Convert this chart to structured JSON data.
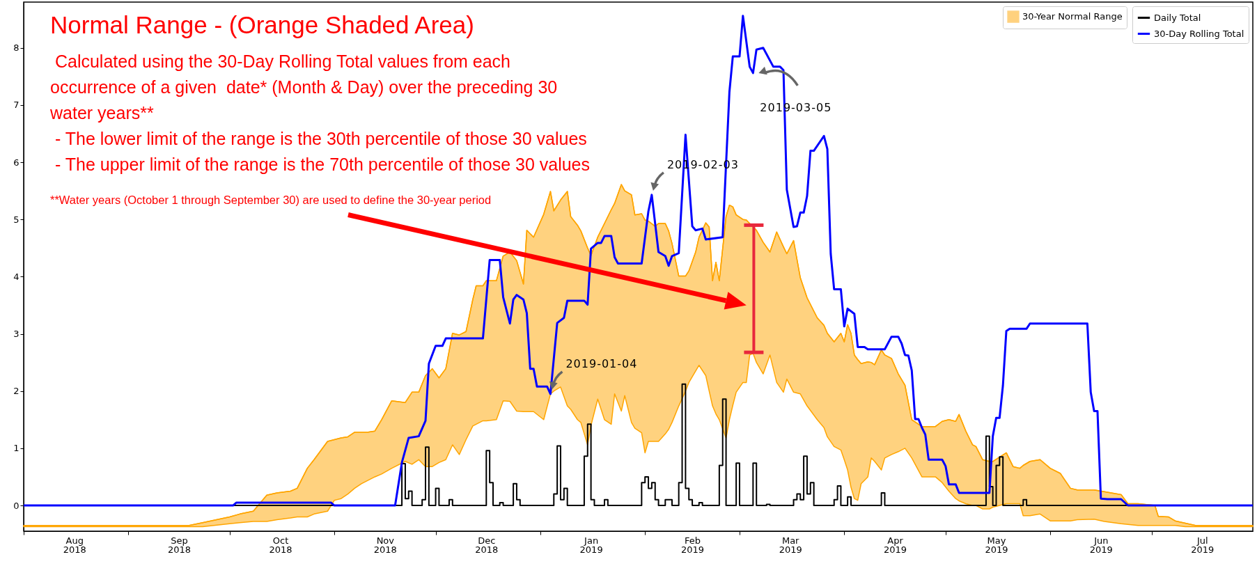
{
  "chart_data": {
    "type": "line",
    "title": "Normal Range - (Orange Shaded Area)",
    "annotations": [
      " Calculated using the 30-Day Rolling Total values from each\noccurrence of a given  date* (Month & Day) over the preceding 30\nwater years**",
      " - The lower limit of the range is the 30th percentile of those 30 values",
      " - The upper limit of the range is the 70th percentile of those 30 values",
      "**Water years (October 1 through September 30) are used to define the 30-year period",
      {
        "text": "2019-01-04",
        "x": "2019-01-04",
        "y": 1.95
      },
      {
        "text": "2019-02-03",
        "x": "2019-02-03",
        "y": 5.43
      },
      {
        "text": "2019-03-05",
        "x": "2019-03-05",
        "y": 7.56
      }
    ],
    "xlim": [
      "2018-08-01",
      "2019-07-31"
    ],
    "ylim": [
      -0.45,
      8.8
    ],
    "yticks": [
      0,
      1,
      2,
      3,
      4,
      5,
      6,
      7,
      8
    ],
    "xticks": [
      {
        "value": "2018-08-01",
        "label": null
      },
      {
        "value": "2018-09-01",
        "label": null
      },
      {
        "value": "2018-10-01",
        "label": null
      },
      {
        "value": "2018-11-01",
        "label": null
      },
      {
        "value": "2018-12-01",
        "label": null
      },
      {
        "value": "2019-01-01",
        "label": null
      },
      {
        "value": "2019-02-01",
        "label": null
      },
      {
        "value": "2019-03-01",
        "label": null
      },
      {
        "value": "2019-04-01",
        "label": null
      },
      {
        "value": "2019-05-01",
        "label": null
      },
      {
        "value": "2019-06-01",
        "label": null
      },
      {
        "value": "2019-07-01",
        "label": null
      },
      {
        "value": "2018-08-16",
        "label": "Aug 2018"
      },
      {
        "value": "2018-09-16",
        "label": "Sep 2018"
      },
      {
        "value": "2018-10-16",
        "label": "Oct 2018"
      },
      {
        "value": "2018-11-16",
        "label": "Nov 2018"
      },
      {
        "value": "2018-12-16",
        "label": "Dec 2018"
      },
      {
        "value": "2019-01-16",
        "label": "Jan 2019"
      },
      {
        "value": "2019-02-15",
        "label": "Feb 2019"
      },
      {
        "value": "2019-03-16",
        "label": "Mar 2019"
      },
      {
        "value": "2019-04-16",
        "label": "Apr 2019"
      },
      {
        "value": "2019-05-16",
        "label": "May 2019"
      },
      {
        "value": "2019-06-16",
        "label": "Jun 2019"
      },
      {
        "value": "2019-07-16",
        "label": "Jul 2019"
      }
    ],
    "legend": "top right",
    "series": [
      {
        "name": "30-Year Normal Range",
        "type": "line",
        "color": "#ffa500",
        "x": [
          "2018-08-01",
          "2018-09-19",
          "2018-09-23",
          "2018-10-01",
          "2018-10-04",
          "2018-10-08",
          "2018-10-12",
          "2018-10-15",
          "2018-10-19",
          "2018-10-21",
          "2018-10-24",
          "2018-10-26",
          "2018-10-30",
          "2018-11-01",
          "2018-11-03",
          "2018-11-05",
          "2018-11-07",
          "2018-11-09",
          "2018-11-11",
          "2018-11-13",
          "2018-11-15",
          "2018-11-18",
          "2018-11-22",
          "2018-11-24",
          "2018-11-26",
          "2018-11-28",
          "2018-11-30",
          "2018-12-02",
          "2018-12-04",
          "2018-12-06",
          "2018-12-08",
          "2018-12-10",
          "2018-12-12",
          "2018-12-13",
          "2018-12-15",
          "2018-12-16",
          "2018-12-19",
          "2018-12-21",
          "2018-12-23",
          "2018-12-25",
          "2018-12-27",
          "2018-12-28",
          "2018-12-30",
          "2019-01-02",
          "2019-01-04",
          "2019-01-05",
          "2019-01-07",
          "2019-01-09",
          "2019-01-10",
          "2019-01-12",
          "2019-01-13",
          "2019-01-15",
          "2019-01-16",
          "2019-01-18",
          "2019-01-20",
          "2019-01-22",
          "2019-01-23",
          "2019-01-25",
          "2019-01-26",
          "2019-01-28",
          "2019-01-29",
          "2019-01-31",
          "2019-02-01",
          "2019-02-02",
          "2019-02-04",
          "2019-02-05",
          "2019-02-07",
          "2019-02-08",
          "2019-02-09",
          "2019-02-11",
          "2019-02-13",
          "2019-02-14",
          "2019-02-16",
          "2019-02-17",
          "2019-02-19",
          "2019-02-20",
          "2019-02-21",
          "2019-02-22",
          "2019-02-23",
          "2019-02-25",
          "2019-02-26",
          "2019-02-27",
          "2019-02-28",
          "2019-03-02",
          "2019-03-03",
          "2019-03-04",
          "2019-03-05",
          "2019-03-06",
          "2019-03-08",
          "2019-03-10",
          "2019-03-12",
          "2019-03-14",
          "2019-03-15",
          "2019-03-17",
          "2019-03-19",
          "2019-03-21",
          "2019-03-24",
          "2019-03-26",
          "2019-03-27",
          "2019-03-29",
          "2019-03-31",
          "2019-04-01",
          "2019-04-02",
          "2019-04-03",
          "2019-04-04",
          "2019-04-05",
          "2019-04-06",
          "2019-04-08",
          "2019-04-09",
          "2019-04-10",
          "2019-04-12",
          "2019-04-13",
          "2019-04-15",
          "2019-04-17",
          "2019-04-19",
          "2019-04-21",
          "2019-04-24",
          "2019-04-28",
          "2019-04-30",
          "2019-05-02",
          "2019-05-04",
          "2019-05-05",
          "2019-05-07",
          "2019-05-09",
          "2019-05-10",
          "2019-05-12",
          "2019-05-14",
          "2019-05-15",
          "2019-05-19",
          "2019-05-21",
          "2019-05-23",
          "2019-05-24",
          "2019-05-26",
          "2019-05-29",
          "2019-06-01",
          "2019-06-04",
          "2019-06-07",
          "2019-06-09",
          "2019-06-14",
          "2019-06-17",
          "2019-06-22",
          "2019-06-24",
          "2019-06-27",
          "2019-07-02",
          "2019-07-03",
          "2019-07-06",
          "2019-07-08",
          "2019-07-11",
          "2019-07-14",
          "2019-07-31"
        ],
        "values": [
          -0.35,
          -0.35,
          -0.3,
          -0.2,
          -0.15,
          -0.1,
          0.18,
          0.22,
          0.25,
          0.3,
          0.65,
          0.8,
          1.12,
          1.15,
          1.18,
          1.2,
          1.28,
          1.28,
          1.28,
          1.3,
          1.5,
          1.83,
          1.8,
          1.98,
          1.98,
          2.27,
          2.39,
          2.23,
          2.39,
          3.01,
          2.98,
          3.04,
          3.6,
          3.84,
          3.84,
          3.93,
          3.93,
          4.36,
          4.43,
          4.28,
          3.87,
          4.81,
          4.69,
          5.09,
          5.49,
          5.15,
          5.34,
          5.49,
          5.05,
          4.9,
          4.8,
          4.5,
          4.37,
          4.69,
          4.93,
          5.17,
          5.28,
          5.61,
          5.5,
          5.43,
          5.08,
          5.1,
          4.99,
          4.97,
          4.88,
          4.93,
          4.93,
          4.8,
          4.58,
          4.01,
          4.01,
          4.1,
          4.43,
          4.69,
          4.94,
          4.87,
          3.93,
          4.25,
          3.93,
          5.05,
          5.25,
          5.22,
          5.08,
          5.0,
          4.99,
          4.93,
          4.87,
          4.81,
          4.6,
          4.43,
          4.78,
          4.52,
          4.4,
          4.63,
          3.98,
          3.63,
          3.28,
          3.15,
          3.01,
          2.86,
          3.01,
          2.86,
          3.16,
          3.01,
          2.63,
          2.55,
          2.48,
          2.51,
          2.5,
          2.46,
          2.72,
          2.63,
          2.57,
          2.3,
          2.1,
          1.5,
          1.38,
          1.38,
          1.47,
          1.5,
          1.47,
          1.59,
          1.3,
          1.06,
          1.03,
          0.8,
          0.77,
          0.77,
          0.92,
          0.68,
          0.65,
          0.7,
          0.77,
          0.8,
          0.65,
          0.56,
          0.3,
          0.27,
          0.27,
          0.24,
          0.19,
          0.03,
          0.03,
          0,
          -0.19,
          -0.2,
          -0.27,
          -0.31,
          -0.35,
          -0.35
        ],
        "upper": [
          -0.35,
          -0.35,
          -0.3,
          -0.2,
          -0.15,
          -0.1,
          0.18,
          0.22,
          0.25,
          0.3,
          0.65,
          0.8,
          1.12,
          1.15,
          1.18,
          1.2,
          1.28,
          1.28,
          1.28,
          1.3,
          1.5,
          1.83,
          1.8,
          1.98,
          1.98,
          2.27,
          2.39,
          2.23,
          2.39,
          3.01,
          2.98,
          3.04,
          3.6,
          3.84,
          3.84,
          3.93,
          3.93,
          4.36,
          4.43,
          4.28,
          3.87,
          4.81,
          4.69,
          5.09,
          5.49,
          5.15,
          5.34,
          5.49,
          5.05,
          4.9,
          4.8,
          4.5,
          4.37,
          4.69,
          4.93,
          5.17,
          5.28,
          5.61,
          5.5,
          5.43,
          5.08,
          5.1,
          4.99,
          4.97,
          4.88,
          4.93,
          4.93,
          4.8,
          4.58,
          4.01,
          4.01,
          4.1,
          4.43,
          4.69,
          4.94,
          4.87,
          3.93,
          4.25,
          3.93,
          5.05,
          5.25,
          5.22,
          5.08,
          5.0,
          4.99,
          4.93,
          4.87,
          4.81,
          4.6,
          4.43,
          4.78,
          4.52,
          4.4,
          4.63,
          3.98,
          3.63,
          3.28,
          3.15,
          3.01,
          2.86,
          3.01,
          2.86,
          3.16,
          3.01,
          2.63,
          2.55,
          2.48,
          2.51,
          2.5,
          2.46,
          2.72,
          2.63,
          2.57,
          2.3,
          2.1,
          1.5,
          1.38,
          1.38,
          1.47,
          1.5,
          1.47,
          1.59,
          1.3,
          1.06,
          1.03,
          0.8,
          0.77,
          0.77,
          0.92,
          0.68,
          0.65,
          0.7,
          0.77,
          0.8,
          0.65,
          0.56,
          0.3,
          0.27,
          0.27,
          0.24,
          0.19,
          0.03,
          0.03,
          0,
          -0.19,
          -0.2,
          -0.27,
          -0.31,
          -0.35,
          -0.35
        ],
        "lower": [
          -0.37,
          -0.37,
          -0.37,
          -0.32,
          -0.3,
          -0.28,
          -0.28,
          -0.25,
          -0.22,
          -0.2,
          -0.2,
          -0.15,
          -0.1,
          0.09,
          0.12,
          0.2,
          0.3,
          0.38,
          0.44,
          0.5,
          0.55,
          0.65,
          0.77,
          0.72,
          0.8,
          0.68,
          0.68,
          0.75,
          0.8,
          1.06,
          0.89,
          1.15,
          1.39,
          1.42,
          1.48,
          1.48,
          1.5,
          1.83,
          1.82,
          1.65,
          1.64,
          1.64,
          1.64,
          1.5,
          1.95,
          2.0,
          2.07,
          1.74,
          1.68,
          1.5,
          1.45,
          1.06,
          1.4,
          1.86,
          1.5,
          1.42,
          1.95,
          1.65,
          1.92,
          1.45,
          1.35,
          1.27,
          0.92,
          1.12,
          1.12,
          1.12,
          1.25,
          1.33,
          1.45,
          1.74,
          2.0,
          2.15,
          2.35,
          2.45,
          2.27,
          2.0,
          1.74,
          1.6,
          1.5,
          1.18,
          1.5,
          1.75,
          1.98,
          2.15,
          2.15,
          2.63,
          2.66,
          2.5,
          2.3,
          2.63,
          2.15,
          1.98,
          2.21,
          1.98,
          1.95,
          1.74,
          1.5,
          1.36,
          1.2,
          1.03,
          0.97,
          0.8,
          0.62,
          0.32,
          0.12,
          0.09,
          0.38,
          0.5,
          0.83,
          0.77,
          0.62,
          0.83,
          0.89,
          0.94,
          1.0,
          0.83,
          0.5,
          0.5,
          0.4,
          0.25,
          0.12,
          0.08,
          0.03,
          0,
          0,
          -0.06,
          -0.06,
          -0.03,
          0.03,
          0.03,
          0.03,
          -0.18,
          -0.18,
          -0.15,
          -0.27,
          -0.27,
          -0.27,
          -0.25,
          -0.24,
          -0.28,
          -0.32,
          -0.33,
          -0.35,
          -0.35,
          -0.35,
          -0.35,
          -0.35,
          -0.37,
          -0.37,
          -0.37
        ]
      },
      {
        "name": "Daily Total",
        "type": "step",
        "color": "#000000",
        "x": [
          "2018-08-01",
          "2018-11-21",
          "2018-11-22",
          "2018-11-23",
          "2018-11-24",
          "2018-11-27",
          "2018-11-28",
          "2018-11-29",
          "2018-12-01",
          "2018-12-02",
          "2018-12-05",
          "2018-12-06",
          "2018-12-16",
          "2018-12-17",
          "2018-12-18",
          "2018-12-20",
          "2018-12-21",
          "2018-12-24",
          "2018-12-25",
          "2018-12-26",
          "2019-01-05",
          "2019-01-06",
          "2019-01-07",
          "2019-01-08",
          "2019-01-09",
          "2019-01-14",
          "2019-01-15",
          "2019-01-16",
          "2019-01-17",
          "2019-01-20",
          "2019-01-21",
          "2019-01-31",
          "2019-02-01",
          "2019-02-02",
          "2019-02-03",
          "2019-02-04",
          "2019-02-05",
          "2019-02-07",
          "2019-02-09",
          "2019-02-11",
          "2019-02-12",
          "2019-02-13",
          "2019-02-14",
          "2019-02-15",
          "2019-02-17",
          "2019-02-18",
          "2019-02-23",
          "2019-02-24",
          "2019-02-25",
          "2019-02-28",
          "2019-03-01",
          "2019-03-05",
          "2019-03-06",
          "2019-03-09",
          "2019-03-10",
          "2019-03-17",
          "2019-03-18",
          "2019-03-19",
          "2019-03-20",
          "2019-03-21",
          "2019-03-22",
          "2019-03-23",
          "2019-03-29",
          "2019-03-30",
          "2019-03-31",
          "2019-04-02",
          "2019-04-03",
          "2019-04-12",
          "2019-04-13",
          "2019-05-13",
          "2019-05-14",
          "2019-05-15",
          "2019-05-16",
          "2019-05-17",
          "2019-05-18",
          "2019-05-24",
          "2019-05-25",
          "2019-07-31"
        ],
        "values": [
          0,
          0.73,
          0.12,
          0.25,
          0,
          0.1,
          1.02,
          0,
          0.3,
          0,
          0.1,
          0,
          0.96,
          0.4,
          0,
          0.05,
          0,
          0.38,
          0.1,
          0,
          0.2,
          1.04,
          0.1,
          0.3,
          0,
          0.86,
          1.42,
          0.1,
          0,
          0.1,
          0,
          0.4,
          0.5,
          0.3,
          0.4,
          0.1,
          0,
          0.1,
          0,
          0.4,
          2.12,
          0.3,
          0.1,
          0,
          0.05,
          0,
          0.7,
          1.86,
          0,
          0.74,
          0,
          0.74,
          0,
          0.02,
          0,
          0.1,
          0.2,
          0.1,
          0.86,
          0.2,
          0.4,
          0,
          0.1,
          0.34,
          0,
          0.15,
          0,
          0.22,
          0,
          1.21,
          0.33,
          0,
          0.7,
          0.85,
          0,
          0.1,
          0,
          0
        ]
      },
      {
        "name": "30-Day Rolling Total",
        "type": "line",
        "color": "#0000ff",
        "x": [
          "2018-08-01",
          "2018-10-02",
          "2018-10-03",
          "2018-10-31",
          "2018-11-01",
          "2018-11-19",
          "2018-11-21",
          "2018-11-23",
          "2018-11-26",
          "2018-11-28",
          "2018-11-29",
          "2018-12-01",
          "2018-12-03",
          "2018-12-04",
          "2018-12-15",
          "2018-12-17",
          "2018-12-20",
          "2018-12-21",
          "2018-12-23",
          "2018-12-24",
          "2018-12-25",
          "2018-12-27",
          "2018-12-28",
          "2018-12-29",
          "2018-12-30",
          "2018-12-31",
          "2019-01-03",
          "2019-01-04",
          "2019-01-06",
          "2019-01-08",
          "2019-01-09",
          "2019-01-14",
          "2019-01-15",
          "2019-01-16",
          "2019-01-18",
          "2019-01-19",
          "2019-01-20",
          "2019-01-22",
          "2019-01-23",
          "2019-01-24",
          "2019-01-31",
          "2019-02-02",
          "2019-02-03",
          "2019-02-05",
          "2019-02-07",
          "2019-02-08",
          "2019-02-09",
          "2019-02-11",
          "2019-02-13",
          "2019-02-15",
          "2019-02-16",
          "2019-02-18",
          "2019-02-19",
          "2019-02-24",
          "2019-02-26",
          "2019-02-27",
          "2019-03-01",
          "2019-03-02",
          "2019-03-04",
          "2019-03-05",
          "2019-03-06",
          "2019-03-08",
          "2019-03-11",
          "2019-03-13",
          "2019-03-14",
          "2019-03-15",
          "2019-03-17",
          "2019-03-18",
          "2019-03-19",
          "2019-03-20",
          "2019-03-21",
          "2019-03-22",
          "2019-03-23",
          "2019-03-26",
          "2019-03-27",
          "2019-03-28",
          "2019-03-29",
          "2019-03-31",
          "2019-04-01",
          "2019-04-02",
          "2019-04-04",
          "2019-04-05",
          "2019-04-07",
          "2019-04-08",
          "2019-04-13",
          "2019-04-15",
          "2019-04-17",
          "2019-04-18",
          "2019-04-19",
          "2019-04-20",
          "2019-04-21",
          "2019-04-22",
          "2019-04-23",
          "2019-04-24",
          "2019-04-25",
          "2019-04-26",
          "2019-04-30",
          "2019-05-01",
          "2019-05-02",
          "2019-05-04",
          "2019-05-05",
          "2019-05-14",
          "2019-05-15",
          "2019-05-16",
          "2019-05-17",
          "2019-05-18",
          "2019-05-19",
          "2019-05-20",
          "2019-05-25",
          "2019-05-26",
          "2019-06-12",
          "2019-06-13",
          "2019-06-14",
          "2019-06-15",
          "2019-06-16",
          "2019-06-18",
          "2019-06-22",
          "2019-06-24",
          "2019-07-31"
        ],
        "values": [
          0,
          0,
          0.05,
          0.05,
          0,
          0,
          0.75,
          1.18,
          1.21,
          1.48,
          2.48,
          2.79,
          2.79,
          2.92,
          2.92,
          4.29,
          4.29,
          3.64,
          3.18,
          3.6,
          3.68,
          3.6,
          3.36,
          2.39,
          2.39,
          2.08,
          2.08,
          1.95,
          3.19,
          3.28,
          3.58,
          3.58,
          3.51,
          4.49,
          4.59,
          4.59,
          4.71,
          4.71,
          4.34,
          4.23,
          4.23,
          5.14,
          5.43,
          4.43,
          4.36,
          4.19,
          4.36,
          4.41,
          6.48,
          4.88,
          4.81,
          4.84,
          4.65,
          4.69,
          7.23,
          7.85,
          7.85,
          8.56,
          7.67,
          7.56,
          7.97,
          8.0,
          7.67,
          7.67,
          7.61,
          5.52,
          4.87,
          4.88,
          5.12,
          5.12,
          5.41,
          6.2,
          6.2,
          6.46,
          6.23,
          4.4,
          3.78,
          3.78,
          3.13,
          3.44,
          3.35,
          2.77,
          2.77,
          2.73,
          2.73,
          2.95,
          2.95,
          2.83,
          2.63,
          2.62,
          2.36,
          1.51,
          1.51,
          1.36,
          1.24,
          0.8,
          0.8,
          0.69,
          0.37,
          0.37,
          0.22,
          0.22,
          1.21,
          1.53,
          1.53,
          2.1,
          3.05,
          3.09,
          3.09,
          3.18,
          3.18,
          1.98,
          1.65,
          1.65,
          0.12,
          0.11,
          0.11,
          0,
          0
        ]
      }
    ]
  }
}
